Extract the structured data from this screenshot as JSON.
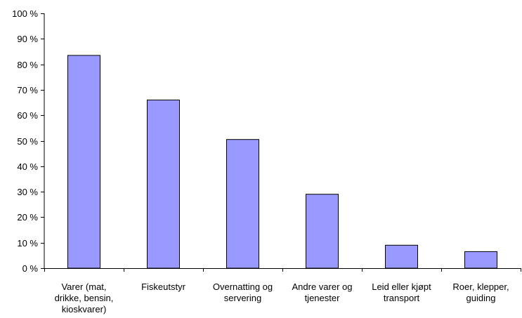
{
  "chart_data": {
    "type": "bar",
    "title": "",
    "xlabel": "",
    "ylabel": "",
    "ylim": [
      0,
      100
    ],
    "ytick_step": 10,
    "ytick_suffix": " %",
    "grid": false,
    "legend": "none",
    "bar_color": "#9999ff",
    "bar_edge_color": "#000000",
    "categories": [
      [
        "Varer (mat,",
        "drikke, bensin,",
        "kioskvarer)"
      ],
      [
        "Fiskeutstyr"
      ],
      [
        "Overnatting og",
        "servering"
      ],
      [
        "Andre varer og",
        "tjenester"
      ],
      [
        "Leid eller kjøpt",
        "transport"
      ],
      [
        "Roer, klepper,",
        "guiding"
      ]
    ],
    "values": [
      83.5,
      66,
      50.5,
      29,
      9,
      6.5
    ]
  }
}
